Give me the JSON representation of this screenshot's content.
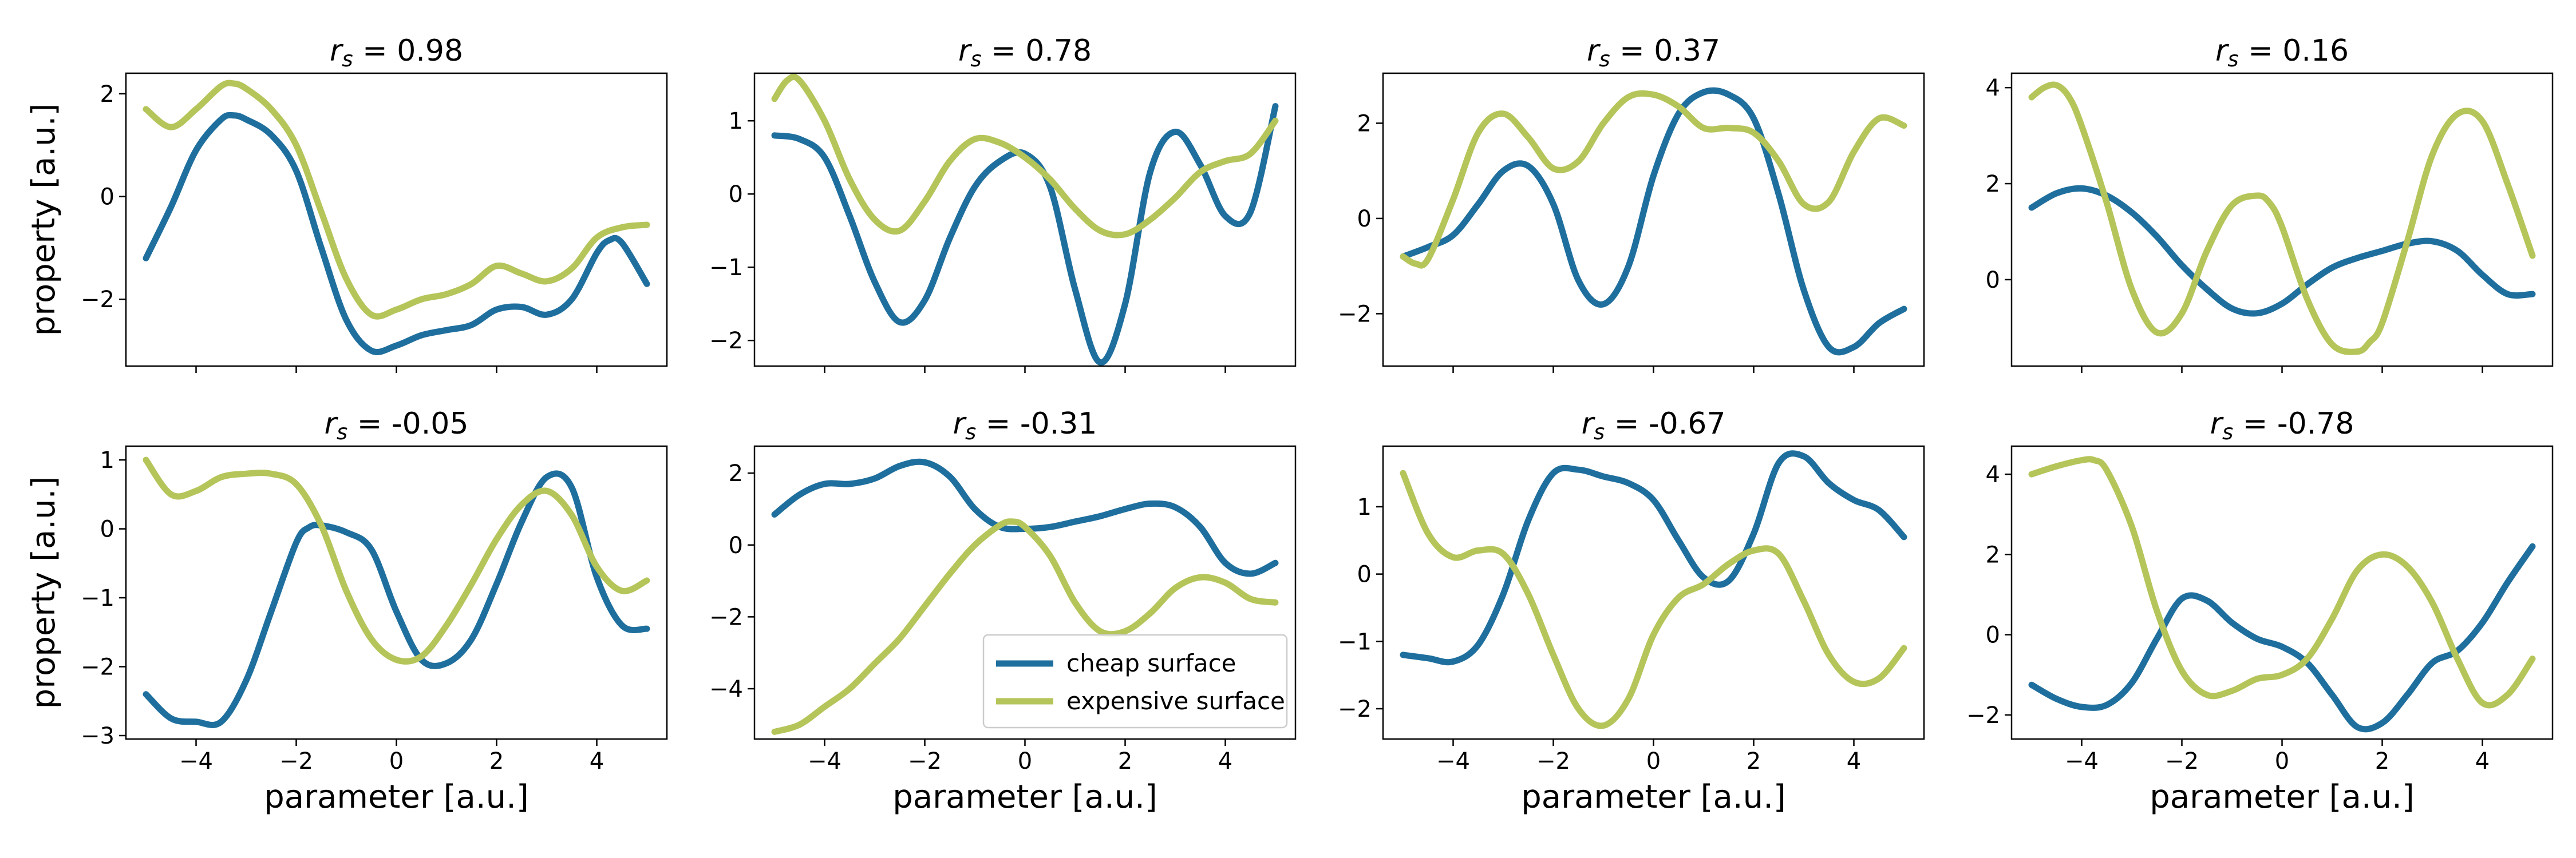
{
  "figure": {
    "xlabel": "parameter [a.u.]",
    "ylabel": "property [a.u.]",
    "legend": {
      "placement": "lower-right of panel 6",
      "entries": [
        {
          "name": "cheap surface",
          "color": "#1f6f9e"
        },
        {
          "name": "expensive surface",
          "color": "#b5c55a"
        }
      ]
    },
    "colors": {
      "cheap": "#1f6f9e",
      "expensive": "#b5c55a"
    }
  },
  "chart_data": [
    {
      "type": "line",
      "title_prefix": "r",
      "title_sub": "s",
      "title_value": "= 0.98",
      "xlim": [
        -5.4,
        5.4
      ],
      "ylim": [
        -3.3,
        2.4
      ],
      "xticks": [
        -4,
        -2,
        0,
        2,
        4
      ],
      "yticks": [
        -2,
        0,
        2
      ],
      "xlabel": "",
      "ylabel": "property [a.u.]",
      "series": [
        {
          "name": "cheap surface",
          "x": [
            -5,
            -4.5,
            -4,
            -3.5,
            -3.25,
            -3,
            -2.5,
            -2,
            -1.5,
            -1,
            -0.5,
            0,
            0.5,
            1,
            1.5,
            2,
            2.5,
            3,
            3.5,
            4,
            4.25,
            4.5,
            5
          ],
          "y": [
            -1.2,
            -0.2,
            0.9,
            1.5,
            1.58,
            1.5,
            1.2,
            0.5,
            -1.0,
            -2.4,
            -3.0,
            -2.9,
            -2.7,
            -2.6,
            -2.5,
            -2.2,
            -2.15,
            -2.3,
            -2.0,
            -1.1,
            -0.85,
            -0.9,
            -1.7
          ]
        },
        {
          "name": "expensive surface",
          "x": [
            -5,
            -4.5,
            -4,
            -3.5,
            -3.25,
            -3,
            -2.5,
            -2,
            -1.5,
            -1,
            -0.5,
            0,
            0.5,
            1,
            1.5,
            2,
            2.5,
            3,
            3.5,
            4,
            4.5,
            5
          ],
          "y": [
            1.7,
            1.35,
            1.7,
            2.15,
            2.2,
            2.1,
            1.7,
            1.0,
            -0.3,
            -1.6,
            -2.3,
            -2.2,
            -2.0,
            -1.9,
            -1.7,
            -1.35,
            -1.5,
            -1.65,
            -1.4,
            -0.8,
            -0.6,
            -0.55
          ]
        }
      ]
    },
    {
      "type": "line",
      "title_prefix": "r",
      "title_sub": "s",
      "title_value": "= 0.78",
      "xlim": [
        -5.4,
        5.4
      ],
      "ylim": [
        -2.35,
        1.65
      ],
      "xticks": [
        -4,
        -2,
        0,
        2,
        4
      ],
      "yticks": [
        -2,
        -1,
        0,
        1
      ],
      "xlabel": "",
      "ylabel": "",
      "series": [
        {
          "name": "cheap surface",
          "x": [
            -5,
            -4.5,
            -4,
            -3.5,
            -3,
            -2.5,
            -2,
            -1.5,
            -1,
            -0.5,
            0,
            0.5,
            1,
            1.5,
            2,
            2.5,
            3,
            3.5,
            4,
            4.5,
            5
          ],
          "y": [
            0.8,
            0.75,
            0.5,
            -0.3,
            -1.2,
            -1.75,
            -1.45,
            -0.6,
            0.1,
            0.45,
            0.55,
            0.1,
            -1.3,
            -2.3,
            -1.5,
            0.3,
            0.85,
            0.4,
            -0.3,
            -0.25,
            1.2
          ]
        },
        {
          "name": "expensive surface",
          "x": [
            -5,
            -4.75,
            -4.5,
            -4,
            -3.5,
            -3,
            -2.5,
            -2,
            -1.5,
            -1,
            -0.5,
            0,
            0.5,
            1,
            1.5,
            2,
            2.5,
            3,
            3.5,
            4,
            4.5,
            5
          ],
          "y": [
            1.3,
            1.55,
            1.55,
            1.0,
            0.2,
            -0.35,
            -0.5,
            -0.1,
            0.45,
            0.75,
            0.7,
            0.5,
            0.2,
            -0.2,
            -0.5,
            -0.55,
            -0.35,
            -0.05,
            0.3,
            0.45,
            0.55,
            1.0
          ]
        }
      ]
    },
    {
      "type": "line",
      "title_prefix": "r",
      "title_sub": "s",
      "title_value": "= 0.37",
      "xlim": [
        -5.4,
        5.4
      ],
      "ylim": [
        -3.1,
        3.05
      ],
      "xticks": [
        -4,
        -2,
        0,
        2,
        4
      ],
      "yticks": [
        -2,
        0,
        2
      ],
      "xlabel": "",
      "ylabel": "",
      "series": [
        {
          "name": "cheap surface",
          "x": [
            -5,
            -4.5,
            -4,
            -3.5,
            -3,
            -2.5,
            -2,
            -1.5,
            -1,
            -0.5,
            0,
            0.5,
            1,
            1.5,
            2,
            2.5,
            3,
            3.5,
            4,
            4.5,
            5
          ],
          "y": [
            -0.8,
            -0.6,
            -0.35,
            0.3,
            1.0,
            1.1,
            0.3,
            -1.3,
            -1.8,
            -1.0,
            0.9,
            2.2,
            2.65,
            2.6,
            2.1,
            0.5,
            -1.5,
            -2.7,
            -2.7,
            -2.2,
            -1.9
          ]
        },
        {
          "name": "expensive surface",
          "x": [
            -5,
            -4.75,
            -4.5,
            -4,
            -3.5,
            -3,
            -2.5,
            -2,
            -1.5,
            -1,
            -0.5,
            0,
            0.5,
            1,
            1.5,
            2,
            2.5,
            3,
            3.5,
            4,
            4.5,
            5
          ],
          "y": [
            -0.8,
            -0.95,
            -0.85,
            0.4,
            1.8,
            2.2,
            1.7,
            1.05,
            1.2,
            2.0,
            2.55,
            2.6,
            2.35,
            1.9,
            1.9,
            1.8,
            1.2,
            0.3,
            0.35,
            1.4,
            2.1,
            1.95
          ]
        }
      ]
    },
    {
      "type": "line",
      "title_prefix": "r",
      "title_sub": "s",
      "title_value": "= 0.16",
      "xlim": [
        -5.4,
        5.4
      ],
      "ylim": [
        -1.8,
        4.3
      ],
      "xticks": [
        -4,
        -2,
        0,
        2,
        4
      ],
      "yticks": [
        0,
        2,
        4
      ],
      "xlabel": "",
      "ylabel": "",
      "series": [
        {
          "name": "cheap surface",
          "x": [
            -5,
            -4.5,
            -4,
            -3.5,
            -3,
            -2.5,
            -2,
            -1.5,
            -1,
            -0.5,
            0,
            0.5,
            1,
            1.5,
            2,
            2.5,
            3,
            3.5,
            4,
            4.5,
            5
          ],
          "y": [
            1.5,
            1.8,
            1.9,
            1.75,
            1.4,
            0.9,
            0.3,
            -0.2,
            -0.6,
            -0.7,
            -0.5,
            -0.1,
            0.25,
            0.45,
            0.6,
            0.75,
            0.8,
            0.6,
            0.1,
            -0.3,
            -0.3
          ]
        },
        {
          "name": "expensive surface",
          "x": [
            -5,
            -4.75,
            -4.5,
            -4.25,
            -4,
            -3.5,
            -3,
            -2.5,
            -2,
            -1.5,
            -1,
            -0.5,
            -0.25,
            0,
            0.5,
            1,
            1.5,
            1.75,
            2,
            2.5,
            3,
            3.5,
            4,
            4.5,
            5
          ],
          "y": [
            3.8,
            4.0,
            4.05,
            3.8,
            3.2,
            1.6,
            -0.2,
            -1.1,
            -0.7,
            0.6,
            1.55,
            1.75,
            1.6,
            1.1,
            -0.4,
            -1.35,
            -1.5,
            -1.3,
            -0.9,
            0.8,
            2.6,
            3.45,
            3.3,
            2.0,
            0.5
          ]
        }
      ]
    },
    {
      "type": "line",
      "title_prefix": "r",
      "title_sub": "s",
      "title_value": "= -0.05",
      "xlim": [
        -5.4,
        5.4
      ],
      "ylim": [
        -3.05,
        1.2
      ],
      "xticks": [
        -4,
        -2,
        0,
        2,
        4
      ],
      "yticks": [
        -3,
        -2,
        -1,
        0,
        1
      ],
      "xlabel": "parameter [a.u.]",
      "ylabel": "property [a.u.]",
      "series": [
        {
          "name": "cheap surface",
          "x": [
            -5,
            -4.5,
            -4,
            -3.5,
            -3,
            -2.5,
            -2,
            -1.75,
            -1.5,
            -1,
            -0.5,
            0,
            0.5,
            1,
            1.5,
            2,
            2.5,
            3,
            3.5,
            4,
            4.5,
            5
          ],
          "y": [
            -2.4,
            -2.75,
            -2.8,
            -2.8,
            -2.2,
            -1.2,
            -0.2,
            0.02,
            0.05,
            -0.05,
            -0.3,
            -1.2,
            -1.9,
            -1.95,
            -1.6,
            -0.8,
            0.1,
            0.75,
            0.6,
            -0.7,
            -1.4,
            -1.45
          ]
        },
        {
          "name": "expensive surface",
          "x": [
            -5,
            -4.5,
            -4,
            -3.5,
            -3,
            -2.5,
            -2,
            -1.5,
            -1,
            -0.5,
            0,
            0.5,
            1,
            1.5,
            2,
            2.5,
            3,
            3.5,
            4,
            4.5,
            5
          ],
          "y": [
            1.0,
            0.5,
            0.55,
            0.75,
            0.8,
            0.8,
            0.65,
            0.05,
            -0.9,
            -1.6,
            -1.9,
            -1.85,
            -1.4,
            -0.8,
            -0.15,
            0.35,
            0.55,
            0.2,
            -0.55,
            -0.9,
            -0.75
          ]
        }
      ]
    },
    {
      "type": "line",
      "title_prefix": "r",
      "title_sub": "s",
      "title_value": "= -0.31",
      "xlim": [
        -5.4,
        5.4
      ],
      "ylim": [
        -5.4,
        2.75
      ],
      "xticks": [
        -4,
        -2,
        0,
        2,
        4
      ],
      "yticks": [
        -4,
        -2,
        0,
        2
      ],
      "xlabel": "parameter [a.u.]",
      "ylabel": "",
      "series": [
        {
          "name": "cheap surface",
          "x": [
            -5,
            -4.5,
            -4,
            -3.5,
            -3,
            -2.5,
            -2,
            -1.5,
            -1,
            -0.5,
            0,
            0.5,
            1,
            1.5,
            2,
            2.5,
            3,
            3.5,
            4,
            4.5,
            5
          ],
          "y": [
            0.85,
            1.4,
            1.7,
            1.7,
            1.85,
            2.2,
            2.3,
            1.9,
            1.0,
            0.5,
            0.45,
            0.5,
            0.65,
            0.8,
            1.0,
            1.15,
            1.05,
            0.5,
            -0.5,
            -0.8,
            -0.5
          ]
        },
        {
          "name": "expensive surface",
          "x": [
            -5,
            -4.5,
            -4,
            -3.5,
            -3,
            -2.5,
            -2,
            -1.5,
            -1,
            -0.5,
            -0.25,
            0,
            0.5,
            1,
            1.5,
            2,
            2.5,
            3,
            3.5,
            4,
            4.5,
            5
          ],
          "y": [
            -5.2,
            -5.0,
            -4.5,
            -4.0,
            -3.3,
            -2.6,
            -1.7,
            -0.8,
            0.0,
            0.55,
            0.65,
            0.5,
            -0.3,
            -1.6,
            -2.4,
            -2.4,
            -1.9,
            -1.2,
            -0.9,
            -1.05,
            -1.5,
            -1.6
          ]
        }
      ]
    },
    {
      "type": "line",
      "title_prefix": "r",
      "title_sub": "s",
      "title_value": "= -0.67",
      "xlim": [
        -5.4,
        5.4
      ],
      "ylim": [
        -2.45,
        1.9
      ],
      "xticks": [
        -4,
        -2,
        0,
        2,
        4
      ],
      "yticks": [
        -2,
        -1,
        0,
        1
      ],
      "xlabel": "parameter [a.u.]",
      "ylabel": "",
      "series": [
        {
          "name": "cheap surface",
          "x": [
            -5,
            -4.5,
            -4,
            -3.5,
            -3,
            -2.5,
            -2,
            -1.5,
            -1,
            -0.5,
            0,
            0.5,
            1,
            1.5,
            2,
            2.5,
            3,
            3.5,
            4,
            4.5,
            5
          ],
          "y": [
            -1.2,
            -1.25,
            -1.3,
            -1.05,
            -0.3,
            0.8,
            1.5,
            1.55,
            1.45,
            1.35,
            1.1,
            0.5,
            -0.05,
            -0.1,
            0.6,
            1.65,
            1.75,
            1.35,
            1.1,
            0.95,
            0.55
          ]
        },
        {
          "name": "expensive surface",
          "x": [
            -5,
            -4.5,
            -4,
            -3.5,
            -3,
            -2.5,
            -2,
            -1.5,
            -1,
            -0.5,
            0,
            0.5,
            1,
            1.5,
            2,
            2.5,
            3,
            3.5,
            4,
            4.5,
            5
          ],
          "y": [
            1.5,
            0.6,
            0.25,
            0.35,
            0.3,
            -0.3,
            -1.2,
            -2.0,
            -2.25,
            -1.85,
            -0.9,
            -0.35,
            -0.15,
            0.15,
            0.35,
            0.3,
            -0.4,
            -1.2,
            -1.6,
            -1.55,
            -1.1
          ]
        }
      ]
    },
    {
      "type": "line",
      "title_prefix": "r",
      "title_sub": "s",
      "title_value": "= -0.78",
      "xlim": [
        -5.4,
        5.4
      ],
      "ylim": [
        -2.6,
        4.7
      ],
      "xticks": [
        -4,
        -2,
        0,
        2,
        4
      ],
      "yticks": [
        -2,
        0,
        2,
        4
      ],
      "xlabel": "parameter [a.u.]",
      "ylabel": "",
      "series": [
        {
          "name": "cheap surface",
          "x": [
            -5,
            -4.5,
            -4,
            -3.5,
            -3,
            -2.5,
            -2,
            -1.5,
            -1,
            -0.5,
            0,
            0.5,
            1,
            1.5,
            2,
            2.5,
            3,
            3.5,
            4,
            4.5,
            5
          ],
          "y": [
            -1.25,
            -1.6,
            -1.8,
            -1.75,
            -1.2,
            -0.1,
            0.9,
            0.85,
            0.3,
            -0.1,
            -0.3,
            -0.7,
            -1.5,
            -2.3,
            -2.2,
            -1.5,
            -0.7,
            -0.4,
            0.3,
            1.3,
            2.2
          ]
        },
        {
          "name": "expensive surface",
          "x": [
            -5,
            -4.5,
            -4,
            -3.75,
            -3.5,
            -3,
            -2.5,
            -2,
            -1.5,
            -1,
            -0.5,
            0,
            0.5,
            1,
            1.5,
            2,
            2.5,
            3,
            3.5,
            4,
            4.5,
            5
          ],
          "y": [
            4.0,
            4.2,
            4.35,
            4.35,
            4.1,
            2.7,
            0.6,
            -0.9,
            -1.5,
            -1.4,
            -1.1,
            -1.0,
            -0.6,
            0.4,
            1.6,
            2.0,
            1.7,
            0.8,
            -0.6,
            -1.7,
            -1.5,
            -0.6
          ]
        }
      ]
    }
  ]
}
